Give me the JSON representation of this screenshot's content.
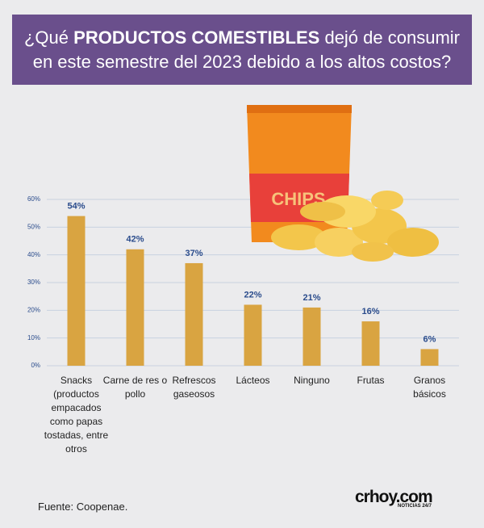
{
  "chart_data": {
    "type": "bar",
    "title": [
      "¿Qué",
      "PRODUCTOS COMESTIBLES",
      "dejó de consumir",
      "en este semestre del 2023 debido a los altos costos?"
    ],
    "categories": [
      "Snacks (productos empacados como papas tostadas, entre otros",
      "Carne de res o pollo",
      "Refrescos gaseosos",
      "Lácteos",
      "Ninguno",
      "Frutas",
      "Granos básicos"
    ],
    "values": [
      54,
      42,
      37,
      22,
      21,
      16,
      6
    ],
    "value_labels": [
      "54%",
      "42%",
      "37%",
      "22%",
      "21%",
      "16%",
      "6%"
    ],
    "color": "#d9a441",
    "ylim": [
      0,
      60
    ],
    "yticks": [
      {
        "value": 0,
        "label": "0%"
      },
      {
        "value": 10,
        "label": "10%"
      },
      {
        "value": 20,
        "label": "20%"
      },
      {
        "value": 30,
        "label": "30%"
      },
      {
        "value": 40,
        "label": "40%"
      },
      {
        "value": 50,
        "label": "50%"
      },
      {
        "value": 60,
        "label": "60%"
      }
    ],
    "grid": true,
    "illustration_text": "CHIPS",
    "source": "Fuente: Coopenae.",
    "logo": "crhoy.com",
    "logo_tagline": "NOTICIAS 24/7"
  }
}
